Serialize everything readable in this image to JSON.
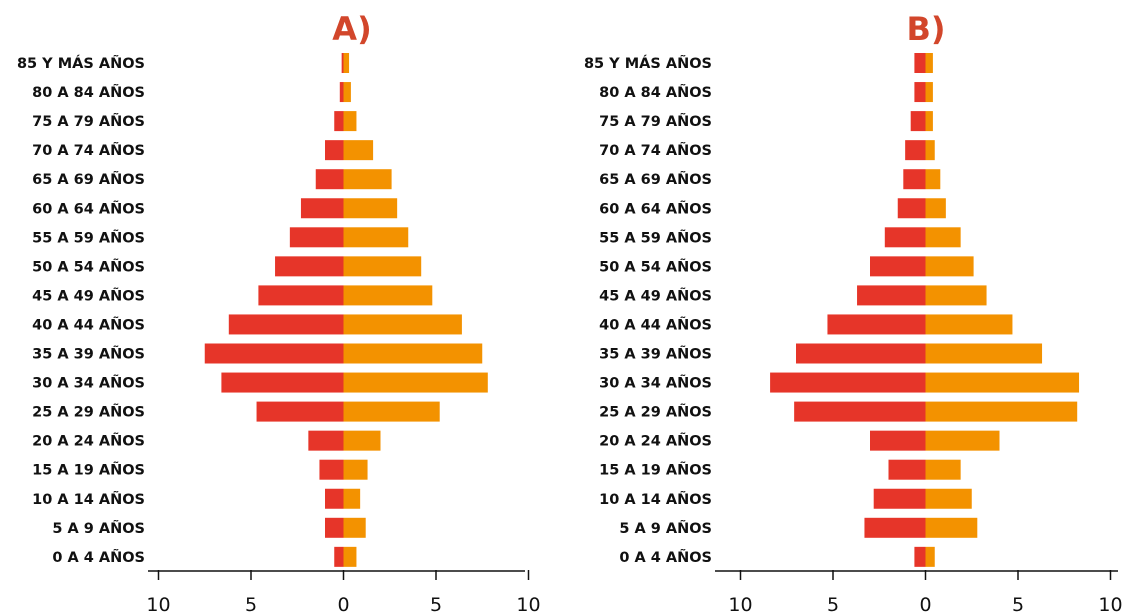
{
  "chart_data": [
    {
      "type": "bar",
      "title": "A)",
      "categories": [
        "85 Y MÁS AÑOS",
        "80 A 84 AÑOS",
        "75 A 79 AÑOS",
        "70 A 74 AÑOS",
        "65 A 69 AÑOS",
        "60 A 64 AÑOS",
        "55 A 59 AÑOS",
        "50 A 54 AÑOS",
        "45 A 49 AÑOS",
        "40 A 44 AÑOS",
        "35 A 39 AÑOS",
        "30 A 34 AÑOS",
        "25 A 29 AÑOS",
        "20 A 24 AÑOS",
        "15 A 19 AÑOS",
        "10 A 14 AÑOS",
        "5 A 9 AÑOS",
        "0 A 4 AÑOS"
      ],
      "series": [
        {
          "values": [
            0.1,
            0.2,
            0.5,
            1.0,
            1.5,
            2.3,
            2.9,
            3.7,
            4.6,
            6.2,
            7.5,
            6.6,
            4.7,
            1.9,
            1.3,
            1.0,
            1.0,
            0.5
          ]
        },
        {
          "values": [
            0.3,
            0.4,
            0.7,
            1.6,
            2.6,
            2.9,
            3.5,
            4.2,
            4.8,
            6.4,
            7.5,
            7.8,
            5.2,
            2.0,
            1.3,
            0.9,
            1.2,
            0.7
          ]
        }
      ],
      "colors": [
        "#e63529",
        "#f39200"
      ],
      "xlim": [
        -10,
        10
      ],
      "xticks": [
        -10,
        -5,
        0,
        5,
        10
      ],
      "xtick_labels": [
        "10",
        "5",
        "0",
        "5",
        "10"
      ],
      "grid": false
    },
    {
      "type": "bar",
      "title": "B)",
      "categories": [
        "85 Y MÁS AÑOS",
        "80 A 84 AÑOS",
        "75 A 79 AÑOS",
        "70 A 74 AÑOS",
        "65 A 69 AÑOS",
        "60 A 64 AÑOS",
        "55 A 59 AÑOS",
        "50 A 54 AÑOS",
        "45 A 49 AÑOS",
        "40 A 44 AÑOS",
        "35 A 39 AÑOS",
        "30 A 34 AÑOS",
        "25 A 29 AÑOS",
        "20 A 24 AÑOS",
        "15 A 19 AÑOS",
        "10 A 14 AÑOS",
        "5 A 9 AÑOS",
        "0 A 4 AÑOS"
      ],
      "series": [
        {
          "values": [
            0.6,
            0.6,
            0.8,
            1.1,
            1.2,
            1.5,
            2.2,
            3.0,
            3.7,
            5.3,
            7.0,
            8.4,
            7.1,
            3.0,
            2.0,
            2.8,
            3.3,
            0.6
          ]
        },
        {
          "values": [
            0.4,
            0.4,
            0.4,
            0.5,
            0.8,
            1.1,
            1.9,
            2.6,
            3.3,
            4.7,
            6.3,
            8.3,
            8.2,
            4.0,
            1.9,
            2.5,
            2.8,
            0.5
          ]
        }
      ],
      "colors": [
        "#e63529",
        "#f39200"
      ],
      "xlim": [
        -10,
        10
      ],
      "xticks": [
        -10,
        -5,
        0,
        5,
        10
      ],
      "xtick_labels": [
        "10",
        "5",
        "0",
        "5",
        "10"
      ],
      "grid": false
    }
  ]
}
